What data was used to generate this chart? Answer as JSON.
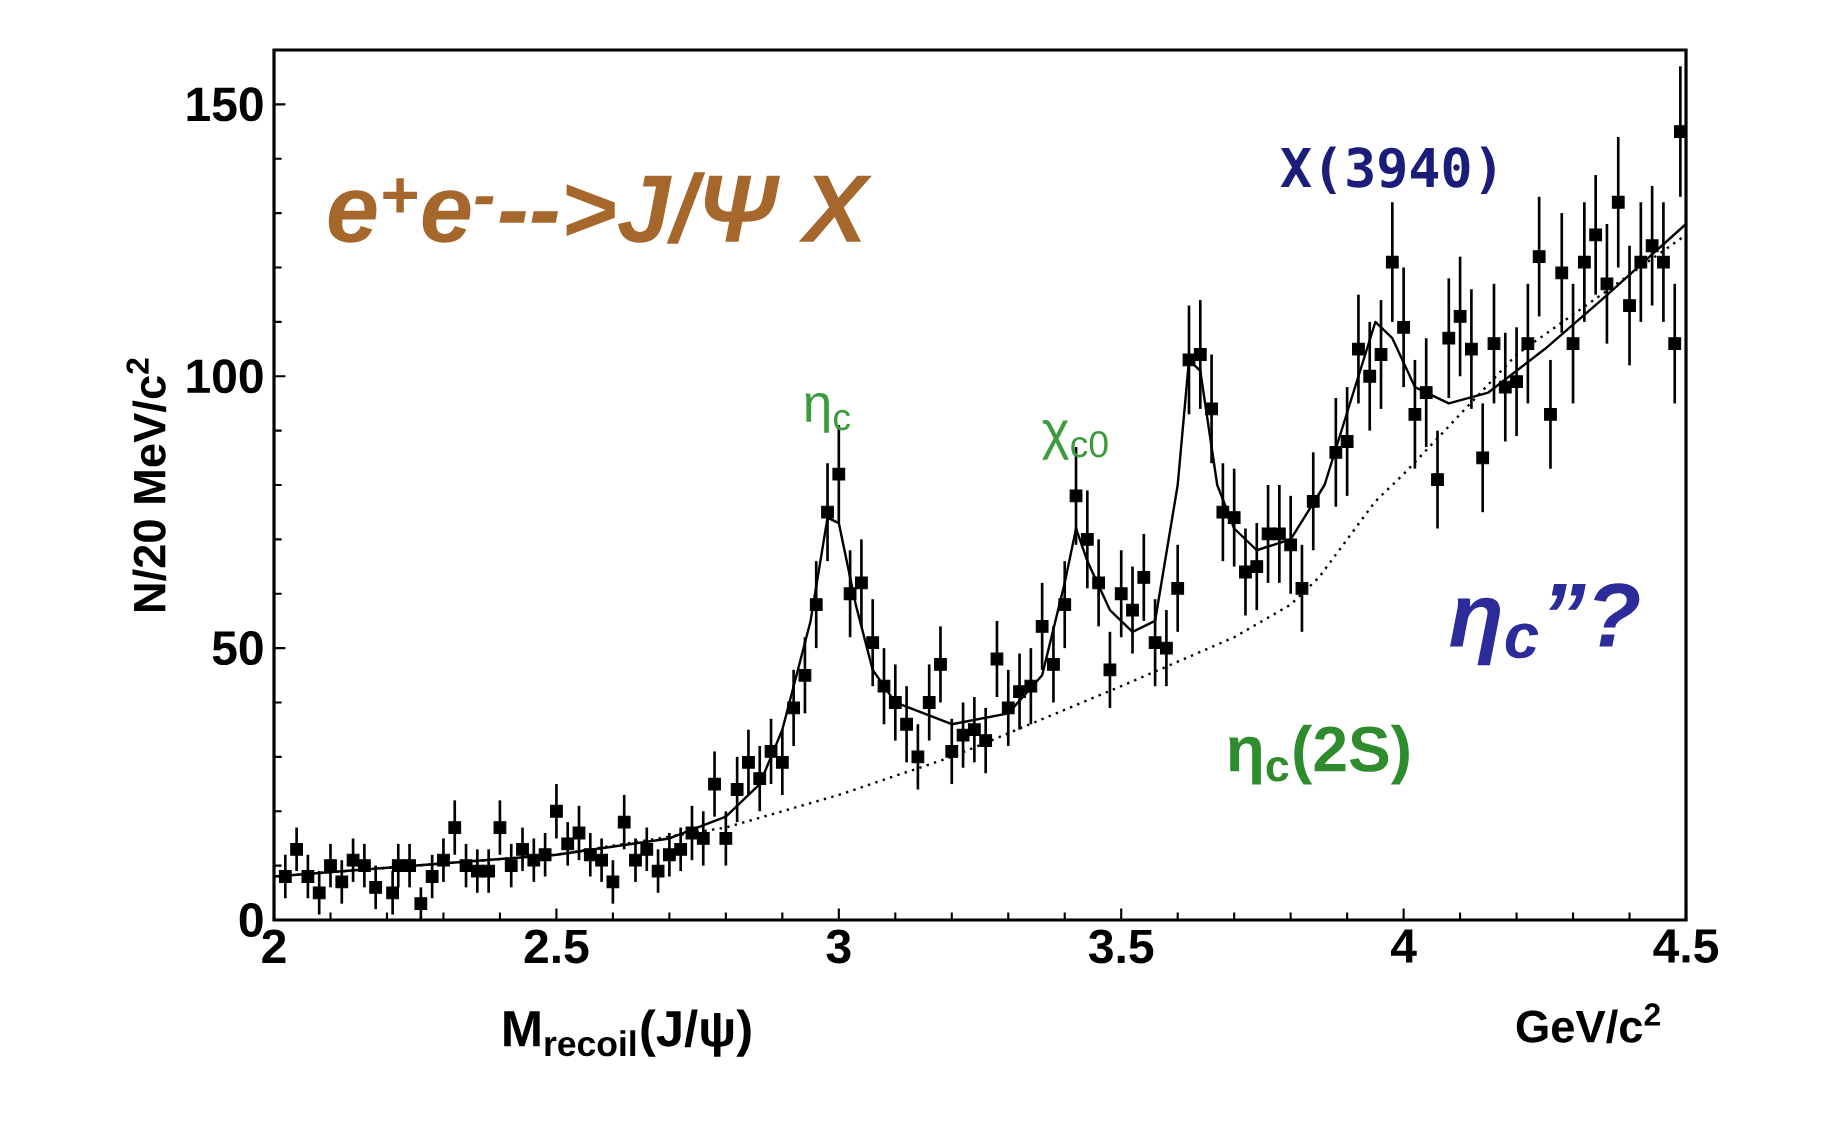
{
  "chart_data": {
    "type": "scatter",
    "title": "e$^{+}$e$^{-}$-->J/Ψ X",
    "xlabel": "M$_{recoil}$(J/ψ)",
    "ylabel": "N/20 MeV/c$^{2}$",
    "xlim": [
      2,
      4.5
    ],
    "ylim": [
      0,
      160
    ],
    "xticks": [
      2,
      2.5,
      3,
      3.5,
      4,
      4.5
    ],
    "yticks": [
      0,
      50,
      100,
      150
    ],
    "grid": false,
    "series": [
      {
        "type": "scatter",
        "color": "#000000",
        "marker": "square",
        "x": [
          2.02,
          2.04,
          2.06,
          2.08,
          2.1,
          2.12,
          2.14,
          2.16,
          2.18,
          2.21,
          2.22,
          2.24,
          2.26,
          2.28,
          2.3,
          2.32,
          2.34,
          2.36,
          2.38,
          2.4,
          2.42,
          2.44,
          2.46,
          2.48,
          2.5,
          2.52,
          2.54,
          2.56,
          2.58,
          2.6,
          2.62,
          2.64,
          2.66,
          2.68,
          2.7,
          2.72,
          2.74,
          2.76,
          2.78,
          2.8,
          2.82,
          2.84,
          2.86,
          2.88,
          2.9,
          2.92,
          2.94,
          2.96,
          2.98,
          3.0,
          3.02,
          3.04,
          3.06,
          3.08,
          3.1,
          3.12,
          3.14,
          3.16,
          3.18,
          3.2,
          3.22,
          3.24,
          3.26,
          3.28,
          3.3,
          3.32,
          3.34,
          3.36,
          3.38,
          3.4,
          3.42,
          3.44,
          3.46,
          3.48,
          3.5,
          3.52,
          3.54,
          3.56,
          3.58,
          3.6,
          3.62,
          3.64,
          3.66,
          3.68,
          3.7,
          3.72,
          3.74,
          3.76,
          3.78,
          3.8,
          3.82,
          3.84,
          3.88,
          3.9,
          3.92,
          3.94,
          3.96,
          3.98,
          4.0,
          4.02,
          4.04,
          4.06,
          4.08,
          4.1,
          4.12,
          4.14,
          4.16,
          4.18,
          4.2,
          4.22,
          4.24,
          4.26,
          4.28,
          4.3,
          4.32,
          4.34,
          4.36,
          4.38,
          4.4,
          4.42,
          4.44,
          4.46,
          4.48,
          4.49
        ],
        "values": [
          8,
          13,
          8,
          5,
          10,
          7,
          11,
          10,
          6,
          5,
          10,
          10,
          3,
          8,
          11,
          17,
          10,
          9,
          9,
          17,
          10,
          13,
          11,
          12,
          20,
          14,
          16,
          12,
          11,
          7,
          18,
          11,
          13,
          9,
          12,
          13,
          16,
          15,
          25,
          15,
          24,
          29,
          26,
          31,
          29,
          39,
          45,
          58,
          75,
          82,
          60,
          62,
          51,
          43,
          40,
          36,
          30,
          40,
          47,
          31,
          34,
          35,
          33,
          48,
          39,
          42,
          43,
          54,
          47,
          58,
          78,
          70,
          62,
          46,
          60,
          57,
          63,
          51,
          50,
          61,
          103,
          104,
          94,
          75,
          74,
          64,
          65,
          71,
          71,
          69,
          61,
          77,
          86,
          88,
          105,
          100,
          104,
          121,
          109,
          93,
          97,
          81,
          107,
          111,
          105,
          85,
          106,
          98,
          99,
          106,
          122,
          93,
          119,
          106,
          121,
          126,
          117,
          132,
          113,
          121,
          124,
          121,
          106,
          145
        ],
        "errors": [
          4,
          4,
          4,
          4,
          4,
          4,
          4,
          4,
          4,
          4,
          4,
          4,
          3,
          4,
          4,
          5,
          4,
          4,
          4,
          5,
          4,
          4,
          4,
          4,
          5,
          4,
          5,
          4,
          4,
          4,
          5,
          4,
          4,
          4,
          4,
          4,
          5,
          5,
          6,
          5,
          6,
          6,
          6,
          6,
          6,
          7,
          7,
          8,
          9,
          9,
          8,
          8,
          8,
          7,
          7,
          7,
          6,
          7,
          7,
          6,
          6,
          6,
          6,
          7,
          7,
          7,
          7,
          8,
          7,
          8,
          9,
          9,
          8,
          7,
          8,
          8,
          8,
          8,
          7,
          8,
          10,
          10,
          10,
          9,
          9,
          8,
          8,
          9,
          9,
          9,
          8,
          9,
          10,
          10,
          10,
          10,
          10,
          11,
          11,
          10,
          10,
          9,
          11,
          11,
          11,
          10,
          11,
          10,
          10,
          11,
          11,
          10,
          11,
          11,
          11,
          11,
          11,
          12,
          11,
          11,
          11,
          11,
          11,
          12
        ]
      },
      {
        "type": "line",
        "color": "#000000",
        "marker": "none",
        "line_style": "solid",
        "x": [
          2.0,
          2.5,
          2.7,
          2.8,
          2.86,
          2.9,
          2.95,
          2.98,
          3.0,
          3.03,
          3.06,
          3.1,
          3.2,
          3.3,
          3.36,
          3.4,
          3.42,
          3.44,
          3.48,
          3.52,
          3.56,
          3.6,
          3.62,
          3.64,
          3.67,
          3.7,
          3.74,
          3.8,
          3.86,
          3.92,
          3.95,
          3.98,
          4.02,
          4.08,
          4.15,
          4.25,
          4.35,
          4.5
        ],
        "values": [
          8,
          12,
          15,
          19,
          25,
          35,
          55,
          74,
          73,
          58,
          46,
          40,
          36,
          38,
          45,
          62,
          72,
          66,
          57,
          53,
          55,
          80,
          103,
          101,
          80,
          72,
          68,
          70,
          80,
          100,
          110,
          107,
          98,
          95,
          97,
          105,
          114,
          128
        ]
      },
      {
        "type": "line",
        "color": "#000000",
        "marker": "none",
        "line_style": "dotted",
        "x": [
          2.0,
          2.5,
          2.8,
          3.0,
          3.2,
          3.5,
          3.7,
          3.8,
          3.85,
          3.9,
          3.95,
          4.0,
          4.2,
          4.5
        ],
        "values": [
          8,
          12,
          17,
          23,
          30,
          43,
          52,
          58,
          63,
          70,
          77,
          82,
          104,
          126
        ]
      }
    ],
    "annotations": [
      {
        "text": "η$_{c}$",
        "x": 2.98,
        "y": 82
      },
      {
        "text": "χ$_{c0}$",
        "x": 3.42,
        "y": 78
      },
      {
        "text": "X(3940)",
        "x": 3.98,
        "y": 121
      },
      "η$_{c}$(2S)",
      "η$_{c}$”?",
      "GeV/c$^{2}$"
    ]
  }
}
